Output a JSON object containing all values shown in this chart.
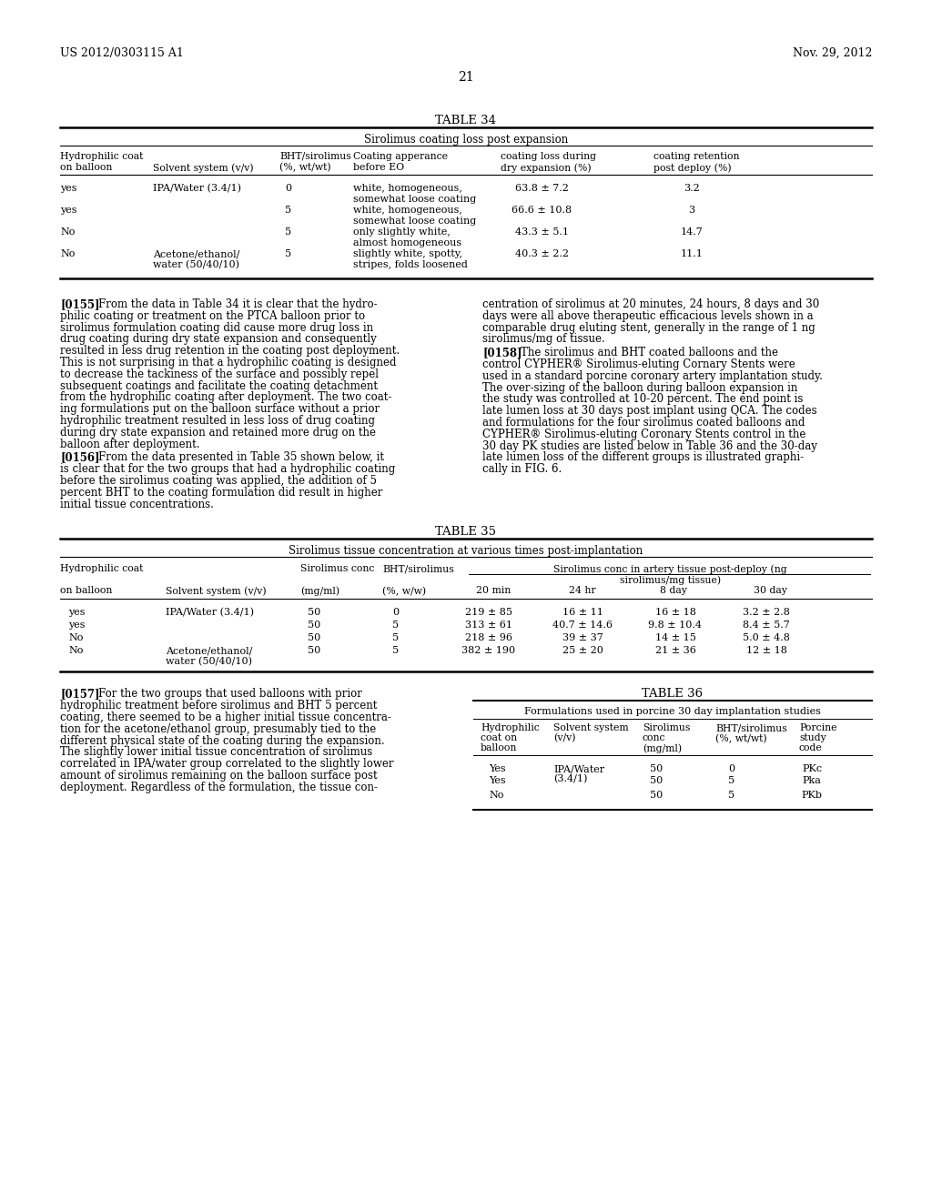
{
  "header_left": "US 2012/0303115 A1",
  "header_right": "Nov. 29, 2012",
  "page_number": "21",
  "background_color": "#ffffff",
  "text_color": "#000000",
  "table34_title": "TABLE 34",
  "table34_subtitle": "Sirolimus coating loss post expansion",
  "table34_rows": [
    [
      "yes",
      "IPA/Water (3.4/1)",
      "0",
      "white, homogeneous,\nsomewhat loose coating",
      "63.8 ± 7.2",
      "3.2"
    ],
    [
      "yes",
      "",
      "5",
      "white, homogeneous,\nsomewhat loose coating",
      "66.6 ± 10.8",
      "3"
    ],
    [
      "No",
      "",
      "5",
      "only slightly white,\nalmost homogeneous",
      "43.3 ± 5.1",
      "14.7"
    ],
    [
      "No",
      "Acetone/ethanol/\nwater (50/40/10)",
      "5",
      "slightly white, spotty,\nstripes, folds loosened",
      "40.3 ± 2.2",
      "11.1"
    ]
  ],
  "para155_left": "From the data in Table 34 it is clear that the hydro-\nphilic coating or treatment on the PTCA balloon prior to\nsirolimus formulation coating did cause more drug loss in\ndrug coating during dry state expansion and consequently\nresulted in less drug retention in the coating post deployment.\nThis is not surprising in that a hydrophilic coating is designed\nto decrease the tackiness of the surface and possibly repel\nsubsequent coatings and facilitate the coating detachment\nfrom the hydrophilic coating after deployment. The two coat-\ning formulations put on the balloon surface without a prior\nhydrophilic treatment resulted in less loss of drug coating\nduring dry state expansion and retained more drug on the\nballoon after deployment.",
  "para156_left": "From the data presented in Table 35 shown below, it\nis clear that for the two groups that had a hydrophilic coating\nbefore the sirolimus coating was applied, the addition of 5\npercent BHT to the coating formulation did result in higher\ninitial tissue concentrations.",
  "para155_right": "centration of sirolimus at 20 minutes, 24 hours, 8 days and 30\ndays were all above therapeutic efficacious levels shown in a\ncomparable drug eluting stent, generally in the range of 1 ng\nsirolimus/mg of tissue.",
  "para158_right": "The sirolimus and BHT coated balloons and the\ncontrol CYPHER® Sirolimus-eluting Cornary Stents were\nused in a standard porcine coronary artery implantation study.\nThe over-sizing of the balloon during balloon expansion in\nthe study was controlled at 10-20 percent. The end point is\nlate lumen loss at 30 days post implant using QCA. The codes\nand formulations for the four sirolimus coated balloons and\nCYPHER® Sirolimus-eluting Coronary Stents control in the\n30 day PK studies are listed below in Table 36 and the 30-day\nlate lumen loss of the different groups is illustrated graphi-\ncally in FIG. 6.",
  "table35_title": "TABLE 35",
  "table35_subtitle": "Sirolimus tissue concentration at various times post-implantation",
  "table35_rows": [
    [
      "yes",
      "IPA/Water (3.4/1)",
      "50",
      "0",
      "219 ± 85",
      "16 ± 11",
      "16 ± 18",
      "3.2 ± 2.8"
    ],
    [
      "yes",
      "",
      "50",
      "5",
      "313 ± 61",
      "40.7 ± 14.6",
      "9.8 ± 10.4",
      "8.4 ± 5.7"
    ],
    [
      "No",
      "",
      "50",
      "5",
      "218 ± 96",
      "39 ± 37",
      "14 ± 15",
      "5.0 ± 4.8"
    ],
    [
      "No",
      "Acetone/ethanol/\nwater (50/40/10)",
      "50",
      "5",
      "382 ± 190",
      "25 ± 20",
      "21 ± 36",
      "12 ± 18"
    ]
  ],
  "table36_title": "TABLE 36",
  "table36_subtitle": "Formulations used in porcine 30 day implantation studies",
  "table36_rows": [
    [
      "Yes",
      "IPA/Water\n(3.4/1)",
      "50",
      "0",
      "PKc"
    ],
    [
      "Yes",
      "",
      "50",
      "5",
      "Pka"
    ],
    [
      "No",
      "",
      "50",
      "5",
      "PKb"
    ]
  ],
  "para157_left": "For the two groups that used balloons with prior\nhydrophilic treatment before sirolimus and BHT 5 percent\ncoating, there seemed to be a higher initial tissue concentra-\ntion for the acetone/ethanol group, presumably tied to the\ndifferent physical state of the coating during the expansion.\nThe slightly lower initial tissue concentration of sirolimus\ncorrelated in IPA/water group correlated to the slightly lower\namount of sirolimus remaining on the balloon surface post\ndeployment. Regardless of the formulation, the tissue con-"
}
